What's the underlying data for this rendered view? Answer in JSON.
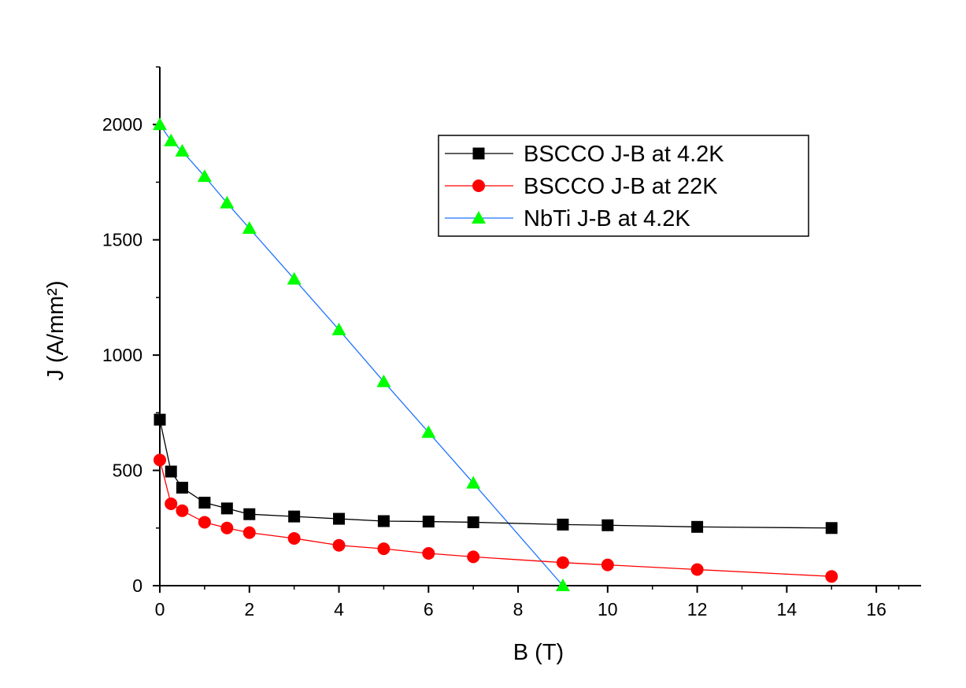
{
  "chart_data": {
    "type": "line",
    "title": "",
    "xlabel": "B (T)",
    "ylabel": "J (A/mm²)",
    "xlim": [
      0,
      17
    ],
    "ylim": [
      0,
      2250
    ],
    "xticks": [
      0,
      2,
      4,
      6,
      8,
      10,
      12,
      14,
      16
    ],
    "yticks": [
      0,
      500,
      1000,
      1500,
      2000
    ],
    "grid": false,
    "legend_position": "top-right",
    "series": [
      {
        "name": "BSCCO J-B at 4.2K",
        "color": "#000000",
        "marker": "square",
        "x": [
          0,
          0.25,
          0.5,
          1,
          1.5,
          2,
          3,
          4,
          5,
          6,
          7,
          9,
          10,
          12,
          15
        ],
        "y": [
          720,
          495,
          425,
          360,
          335,
          310,
          300,
          290,
          280,
          278,
          275,
          265,
          262,
          255,
          250
        ]
      },
      {
        "name": "BSCCO J-B at 22K",
        "color": "#ff0000",
        "marker": "circle",
        "x": [
          0,
          0.25,
          0.5,
          1,
          1.5,
          2,
          3,
          4,
          5,
          6,
          7,
          9,
          10,
          12,
          15
        ],
        "y": [
          545,
          355,
          325,
          275,
          250,
          230,
          205,
          175,
          160,
          140,
          125,
          100,
          90,
          70,
          40
        ]
      },
      {
        "name": "NbTi J-B at 4.2K",
        "color": "#1e73ff",
        "marker_color": "#00ff00",
        "marker": "triangle",
        "x": [
          0,
          0.25,
          0.5,
          1,
          1.5,
          2,
          3,
          4,
          5,
          6,
          7,
          9
        ],
        "y": [
          2000,
          1930,
          1885,
          1775,
          1660,
          1550,
          1330,
          1110,
          885,
          665,
          445,
          0
        ]
      }
    ]
  }
}
